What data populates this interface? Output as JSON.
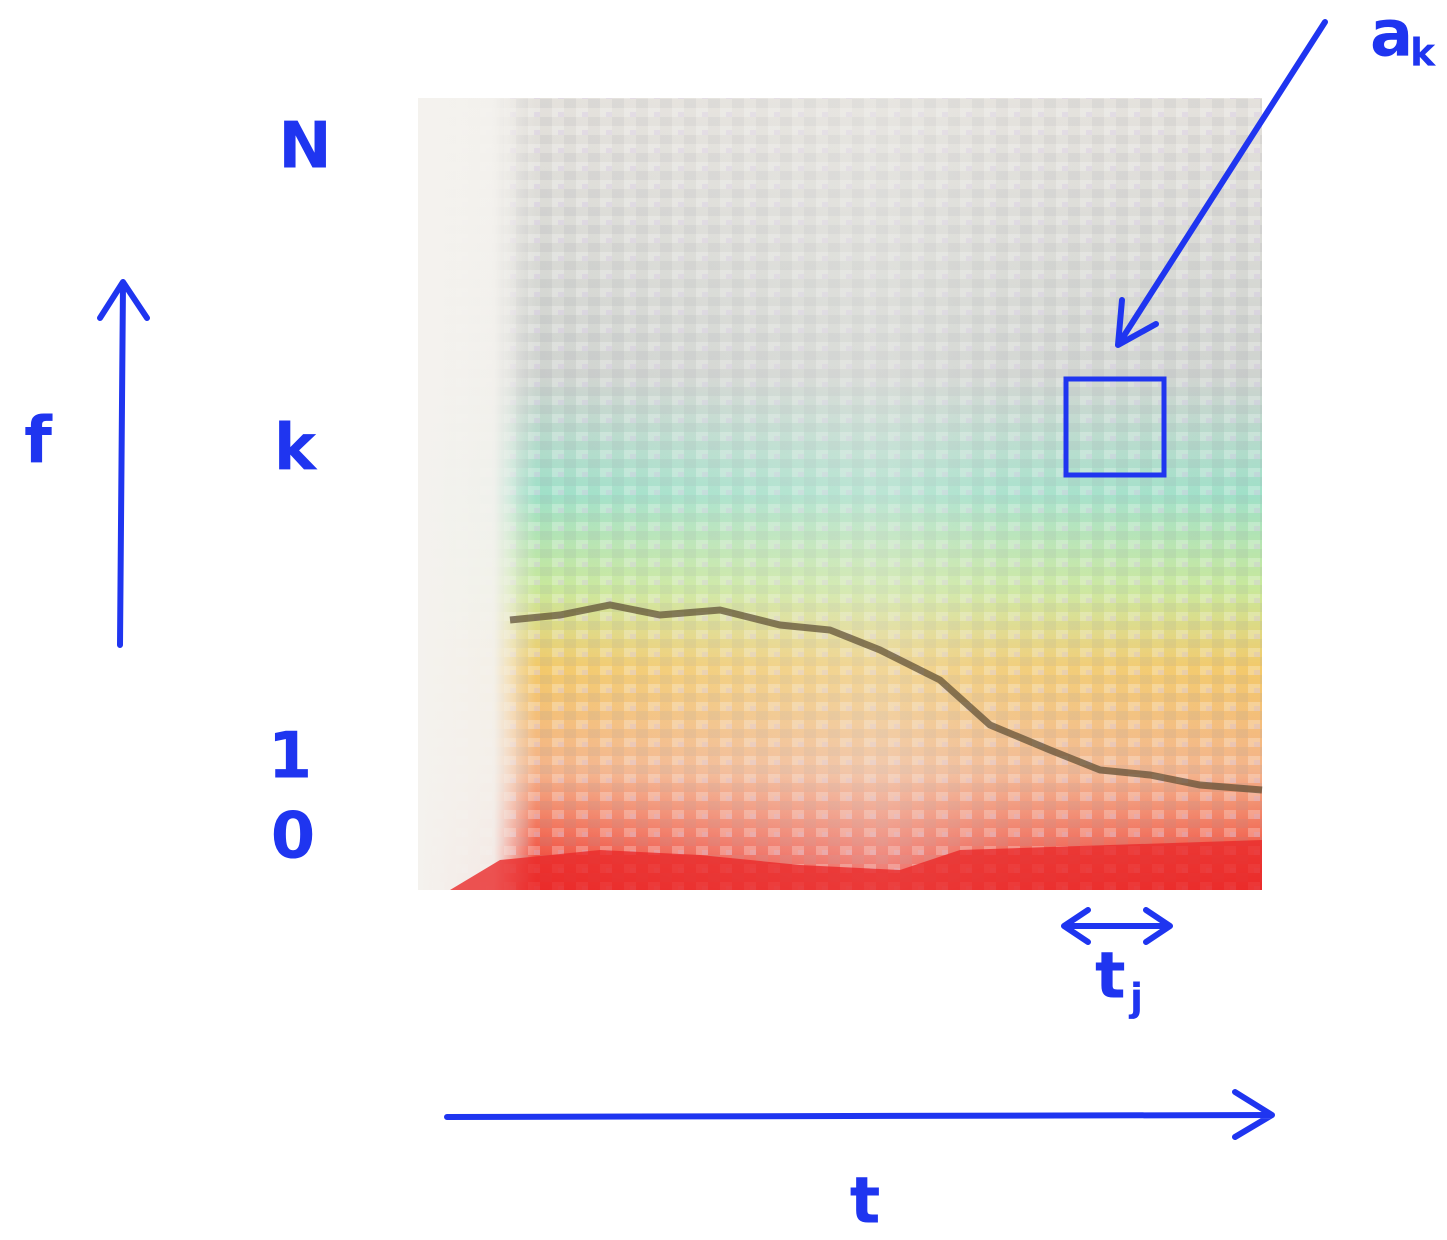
{
  "axis_labels": {
    "frequency": "f",
    "time": "t"
  },
  "frequency_bins": [
    "N",
    "k",
    "1",
    "0"
  ],
  "annotations": {
    "coefficient": {
      "base": "a",
      "subscript": "k"
    },
    "time_step": {
      "base": "t",
      "subscript": "j"
    }
  }
}
